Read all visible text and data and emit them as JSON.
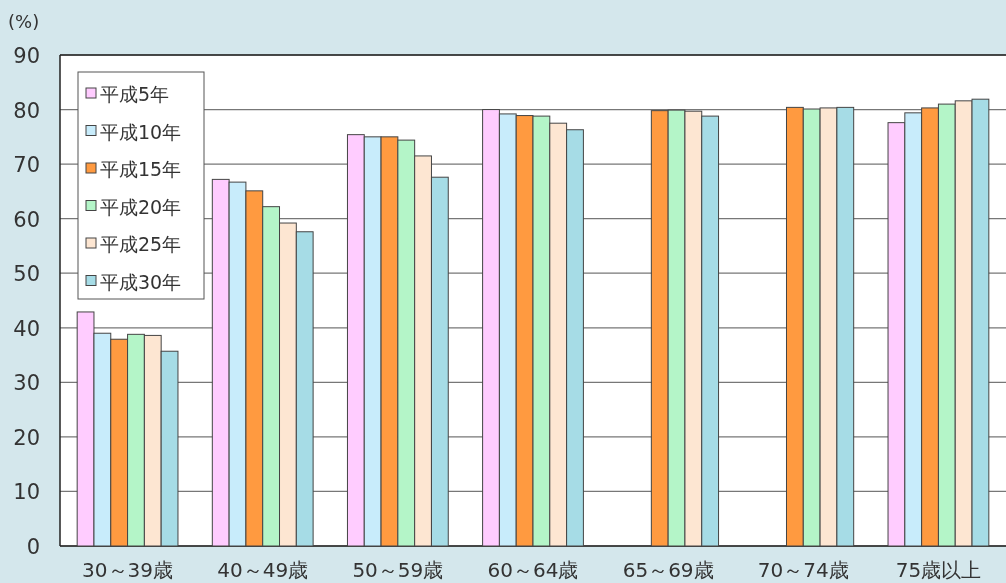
{
  "chart_data": {
    "type": "bar",
    "ylabel": "(%)",
    "categories": [
      "30～39歳",
      "40～49歳",
      "50～59歳",
      "60～64歳",
      "65～69歳",
      "70～74歳",
      "75歳以上"
    ],
    "series": [
      {
        "name": "平成5年",
        "color": "#ffccff",
        "values": [
          42.9,
          67.2,
          75.4,
          80.0,
          null,
          null,
          77.6
        ]
      },
      {
        "name": "平成10年",
        "color": "#c8ecfb",
        "values": [
          39.0,
          66.7,
          75.0,
          79.2,
          null,
          null,
          79.4
        ]
      },
      {
        "name": "平成15年",
        "color": "#ff9a40",
        "values": [
          37.9,
          65.1,
          75.0,
          78.9,
          79.8,
          80.4,
          80.3
        ]
      },
      {
        "name": "平成20年",
        "color": "#b4f5c8",
        "values": [
          38.8,
          62.2,
          74.4,
          78.8,
          79.9,
          80.1,
          81.0
        ]
      },
      {
        "name": "平成25年",
        "color": "#fde6d2",
        "values": [
          38.6,
          59.2,
          71.5,
          77.5,
          79.7,
          80.3,
          81.6
        ]
      },
      {
        "name": "平成30年",
        "color": "#a6dce6",
        "values": [
          35.7,
          57.6,
          67.6,
          76.3,
          78.8,
          80.4,
          81.9
        ]
      }
    ],
    "ylim": [
      0,
      90
    ],
    "yticks": [
      0,
      10,
      20,
      30,
      40,
      50,
      60,
      70,
      80,
      90
    ],
    "grid": "y",
    "legend": "top left"
  }
}
